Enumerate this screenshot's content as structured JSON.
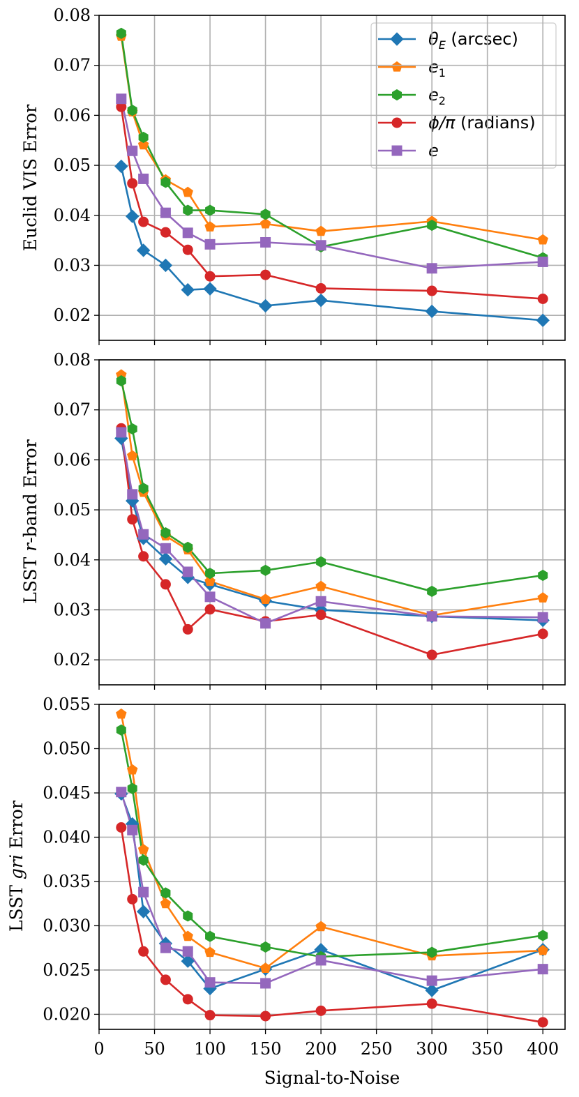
{
  "chart_data": [
    {
      "type": "line",
      "ylabel": "Euclid VIS Error",
      "xlabel": "",
      "ylim": [
        0.015,
        0.08
      ],
      "yticks": [
        0.02,
        0.03,
        0.04,
        0.05,
        0.06,
        0.07,
        0.08
      ],
      "ytick_labels": [
        "0.02",
        "0.03",
        "0.04",
        "0.05",
        "0.06",
        "0.07",
        "0.08"
      ],
      "legend": "top-right",
      "legend_labels": [
        {
          "pre": "θ",
          "sub": "E",
          "post": " (arcsec)"
        },
        {
          "pre": "e",
          "sub": "1",
          "post": ""
        },
        {
          "pre": "e",
          "sub": "2",
          "post": ""
        },
        {
          "pre": "ϕ/π",
          "sub": "",
          "post": " (radians)"
        },
        {
          "pre": "e",
          "sub": "",
          "post": ""
        }
      ],
      "series": [
        {
          "name": "θE (arcsec)",
          "values": [
            0.0498,
            0.0398,
            0.033,
            0.03,
            0.0251,
            0.0253,
            0.0219,
            0.023,
            0.0208,
            0.019
          ]
        },
        {
          "name": "e1",
          "values": [
            0.0758,
            0.0607,
            0.0541,
            0.0471,
            0.0446,
            0.0377,
            0.0383,
            0.0368,
            0.0388,
            0.0351
          ]
        },
        {
          "name": "e2",
          "values": [
            0.0764,
            0.061,
            0.0556,
            0.0466,
            0.041,
            0.041,
            0.0402,
            0.0337,
            0.038,
            0.0315
          ]
        },
        {
          "name": "ϕ/π (radians)",
          "values": [
            0.0617,
            0.0464,
            0.0387,
            0.0366,
            0.0331,
            0.0278,
            0.0281,
            0.0254,
            0.0249,
            0.0233
          ]
        },
        {
          "name": "e",
          "values": [
            0.0633,
            0.0529,
            0.0473,
            0.0405,
            0.0365,
            0.0342,
            0.0346,
            0.034,
            0.0294,
            0.0307
          ]
        }
      ]
    },
    {
      "type": "line",
      "ylabel_pre": "LSST ",
      "ylabel_ital": "r",
      "ylabel_post": "-band Error",
      "xlabel": "",
      "ylim": [
        0.015,
        0.08
      ],
      "yticks": [
        0.02,
        0.03,
        0.04,
        0.05,
        0.06,
        0.07,
        0.08
      ],
      "ytick_labels": [
        "0.02",
        "0.03",
        "0.04",
        "0.05",
        "0.06",
        "0.07",
        "0.08"
      ],
      "series": [
        {
          "name": "θE (arcsec)",
          "values": [
            0.0643,
            0.0518,
            0.0443,
            0.0402,
            0.0365,
            0.0351,
            0.0318,
            0.03,
            0.0287,
            0.0279
          ]
        },
        {
          "name": "e1",
          "values": [
            0.077,
            0.0608,
            0.0535,
            0.0448,
            0.042,
            0.0357,
            0.0321,
            0.0347,
            0.0289,
            0.0324
          ]
        },
        {
          "name": "e2",
          "values": [
            0.0758,
            0.0662,
            0.0543,
            0.0454,
            0.0425,
            0.0373,
            0.0379,
            0.0396,
            0.0337,
            0.0369
          ]
        },
        {
          "name": "ϕ/π (radians)",
          "values": [
            0.0663,
            0.0481,
            0.0407,
            0.0351,
            0.0261,
            0.0301,
            0.0277,
            0.029,
            0.021,
            0.0252
          ]
        },
        {
          "name": "e",
          "values": [
            0.0655,
            0.0531,
            0.0451,
            0.0423,
            0.0376,
            0.0326,
            0.0273,
            0.0317,
            0.0287,
            0.0285
          ]
        }
      ]
    },
    {
      "type": "line",
      "ylabel_pre": "LSST ",
      "ylabel_ital": "gri",
      "ylabel_post": " Error",
      "xlabel": "Signal-to-Noise",
      "xlim": [
        0,
        420
      ],
      "xticks": [
        0,
        50,
        100,
        150,
        200,
        250,
        300,
        350,
        400
      ],
      "xtick_labels": [
        "0",
        "50",
        "100",
        "150",
        "200",
        "250",
        "300",
        "350",
        "400"
      ],
      "ylim": [
        0.0183,
        0.055
      ],
      "yticks": [
        0.02,
        0.025,
        0.03,
        0.035,
        0.04,
        0.045,
        0.05,
        0.055
      ],
      "ytick_labels": [
        "0.020",
        "0.025",
        "0.030",
        "0.035",
        "0.040",
        "0.045",
        "0.050",
        "0.055"
      ],
      "series": [
        {
          "name": "θE (arcsec)",
          "values": [
            0.0449,
            0.0415,
            0.0316,
            0.028,
            0.026,
            0.0229,
            0.0251,
            0.0273,
            0.0227,
            0.0273
          ]
        },
        {
          "name": "e1",
          "values": [
            0.0539,
            0.0476,
            0.0386,
            0.0325,
            0.0288,
            0.027,
            0.0252,
            0.0299,
            0.0266,
            0.0272
          ]
        },
        {
          "name": "e2",
          "values": [
            0.0521,
            0.0455,
            0.0374,
            0.0337,
            0.0311,
            0.0288,
            0.0276,
            0.0265,
            0.027,
            0.0289
          ]
        },
        {
          "name": "ϕ/π (radians)",
          "values": [
            0.0411,
            0.033,
            0.0271,
            0.0239,
            0.0217,
            0.0199,
            0.0198,
            0.0204,
            0.0212,
            0.0191
          ]
        },
        {
          "name": "e",
          "values": [
            0.0451,
            0.0408,
            0.0338,
            0.0275,
            0.0271,
            0.0236,
            0.0235,
            0.0261,
            0.0238,
            0.0251
          ]
        }
      ]
    }
  ],
  "x_values": [
    20,
    30,
    40,
    60,
    80,
    100,
    150,
    200,
    300,
    400
  ],
  "colors": [
    "#1f77b4",
    "#ff7f0e",
    "#2ca02c",
    "#d62728",
    "#9467bd"
  ],
  "markers": [
    "diamond",
    "pentagon",
    "hexagon",
    "circle",
    "square"
  ]
}
